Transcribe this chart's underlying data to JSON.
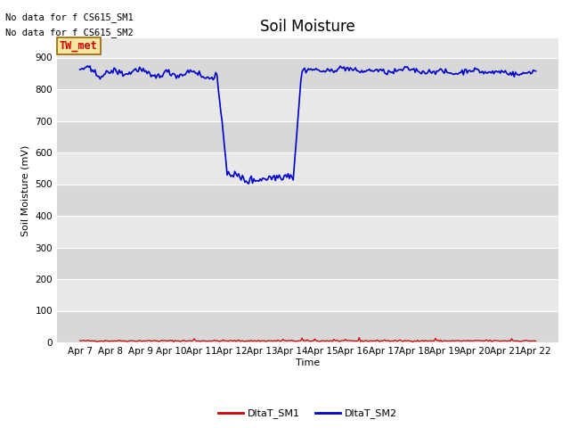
{
  "title": "Soil Moisture",
  "xlabel": "Time",
  "ylabel": "Soil Moisture (mV)",
  "annotations": [
    "No data for f CS615_SM1",
    "No data for f CS615_SM2"
  ],
  "legend_box_label": "TW_met",
  "legend_box_facecolor": "#f5e6a0",
  "legend_box_edgecolor": "#996600",
  "legend_box_textcolor": "#cc0000",
  "ylim": [
    0,
    960
  ],
  "yticks": [
    0,
    100,
    200,
    300,
    400,
    500,
    600,
    700,
    800,
    900
  ],
  "bg_color": "#e8e8e8",
  "bg_color_alt": "#d8d8d8",
  "line1_color": "#cc0000",
  "line2_color": "#0000cc",
  "sm1_value": 5,
  "num_points": 360,
  "date_labels": [
    "Apr 7",
    "Apr 8",
    "Apr 9",
    "Apr 10",
    "Apr 11",
    "Apr 12",
    "Apr 13",
    "Apr 14",
    "Apr 15",
    "Apr 16",
    "Apr 17",
    "Apr 18",
    "Apr 19",
    "Apr 20",
    "Apr 21",
    "Apr 22"
  ],
  "title_fontsize": 12,
  "axis_label_fontsize": 8,
  "tick_fontsize": 7.5,
  "annotation_fontsize": 7.5,
  "legend_fontsize": 8
}
